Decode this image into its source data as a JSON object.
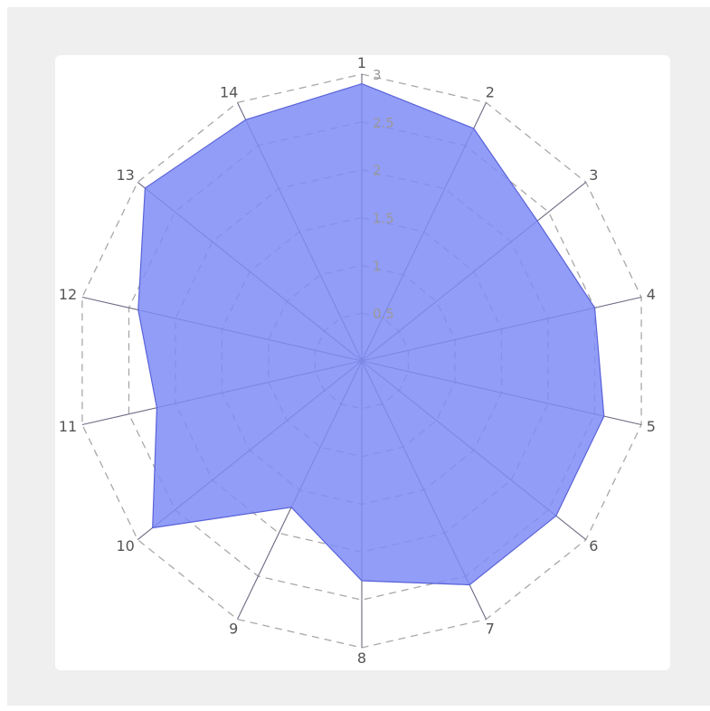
{
  "chart_data": {
    "type": "radar",
    "categories": [
      "1",
      "2",
      "3",
      "4",
      "5",
      "6",
      "7",
      "8",
      "9",
      "10",
      "11",
      "12",
      "13",
      "14"
    ],
    "series": [
      {
        "values": [
          2.9,
          2.7,
          2.35,
          2.5,
          2.6,
          2.6,
          2.6,
          2.3,
          1.7,
          2.8,
          2.2,
          2.4,
          2.9,
          2.8
        ]
      }
    ],
    "rlim": [
      0,
      3
    ],
    "r_ticks": [
      0.5,
      1,
      1.5,
      2,
      2.5,
      3
    ],
    "r_tick_labels": [
      "0.5",
      "1",
      "1.5",
      "2",
      "2.5",
      "3"
    ],
    "grid": true,
    "colors": {
      "fill": "#7f8cf7",
      "stroke": "#5a63d8",
      "grid": "#a8a8a8",
      "spoke": "#6a6a82",
      "background": "#efefef",
      "panel": "#ffffff"
    }
  }
}
